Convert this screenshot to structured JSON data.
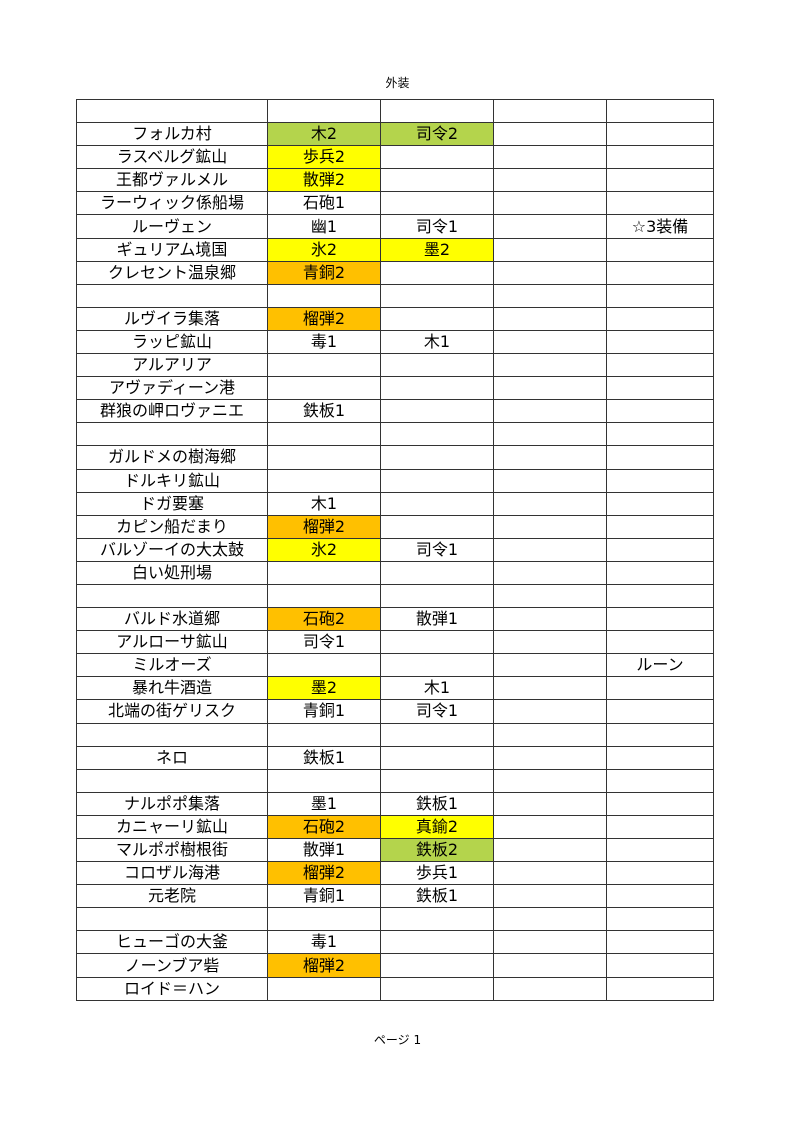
{
  "header": "外装",
  "footer": "ページ 1",
  "colors": {
    "green": "#b4d44c",
    "yellow": "#ffff00",
    "orange": "#ffc000"
  },
  "rows": [
    [
      ""
    ],
    [
      "フォルカ村",
      {
        "t": "木2",
        "c": "green"
      },
      {
        "t": "司令2",
        "c": "green"
      }
    ],
    [
      "ラスベルグ鉱山",
      {
        "t": "歩兵2",
        "c": "yellow"
      }
    ],
    [
      "王都ヴァルメル",
      {
        "t": "散弾2",
        "c": "yellow"
      }
    ],
    [
      "ラーウィック係船場",
      "石砲1"
    ],
    [
      "ルーヴェン",
      "幽1",
      "司令1",
      "",
      "☆3装備"
    ],
    [
      "ギュリアム境国",
      {
        "t": "氷2",
        "c": "yellow"
      },
      {
        "t": "墨2",
        "c": "yellow"
      }
    ],
    [
      "クレセント温泉郷",
      {
        "t": "青銅2",
        "c": "orange"
      }
    ],
    [
      ""
    ],
    [
      "ルヴイラ集落",
      {
        "t": "榴弾2",
        "c": "orange"
      }
    ],
    [
      "ラッピ鉱山",
      "毒1",
      "木1"
    ],
    [
      "アルアリア"
    ],
    [
      "アヴァディーン港"
    ],
    [
      "群狼の岬ロヴァニエ",
      "鉄板1"
    ],
    [
      ""
    ],
    [
      "ガルドメの樹海郷"
    ],
    [
      "ドルキリ鉱山"
    ],
    [
      "ドガ要塞",
      "木1"
    ],
    [
      "カピン船だまり",
      {
        "t": "榴弾2",
        "c": "orange"
      }
    ],
    [
      "バルゾーイの大太鼓",
      {
        "t": "氷2",
        "c": "yellow"
      },
      "司令1"
    ],
    [
      "白い処刑場"
    ],
    [
      ""
    ],
    [
      "バルド水道郷",
      {
        "t": "石砲2",
        "c": "orange"
      },
      "散弾1"
    ],
    [
      "アルローサ鉱山",
      "司令1"
    ],
    [
      "ミルオーズ",
      "",
      "",
      "",
      "ルーン"
    ],
    [
      "暴れ牛酒造",
      {
        "t": "墨2",
        "c": "yellow"
      },
      "木1"
    ],
    [
      "北端の街ゲリスク",
      "青銅1",
      "司令1"
    ],
    [
      ""
    ],
    [
      "ネロ",
      "鉄板1"
    ],
    [
      ""
    ],
    [
      "ナルポポ集落",
      "墨1",
      "鉄板1"
    ],
    [
      "カニャーリ鉱山",
      {
        "t": "石砲2",
        "c": "orange"
      },
      {
        "t": "真鍮2",
        "c": "yellow"
      }
    ],
    [
      "マルポポ樹根街",
      "散弾1",
      {
        "t": "鉄板2",
        "c": "green"
      }
    ],
    [
      "コロザル海港",
      {
        "t": "榴弾2",
        "c": "orange"
      },
      "歩兵1"
    ],
    [
      "元老院",
      "青銅1",
      "鉄板1"
    ],
    [
      ""
    ],
    [
      "ヒューゴの大釜",
      "毒1"
    ],
    [
      "ノーンブア砦",
      {
        "t": "榴弾2",
        "c": "orange"
      }
    ],
    [
      "ロイド＝ハン"
    ]
  ]
}
